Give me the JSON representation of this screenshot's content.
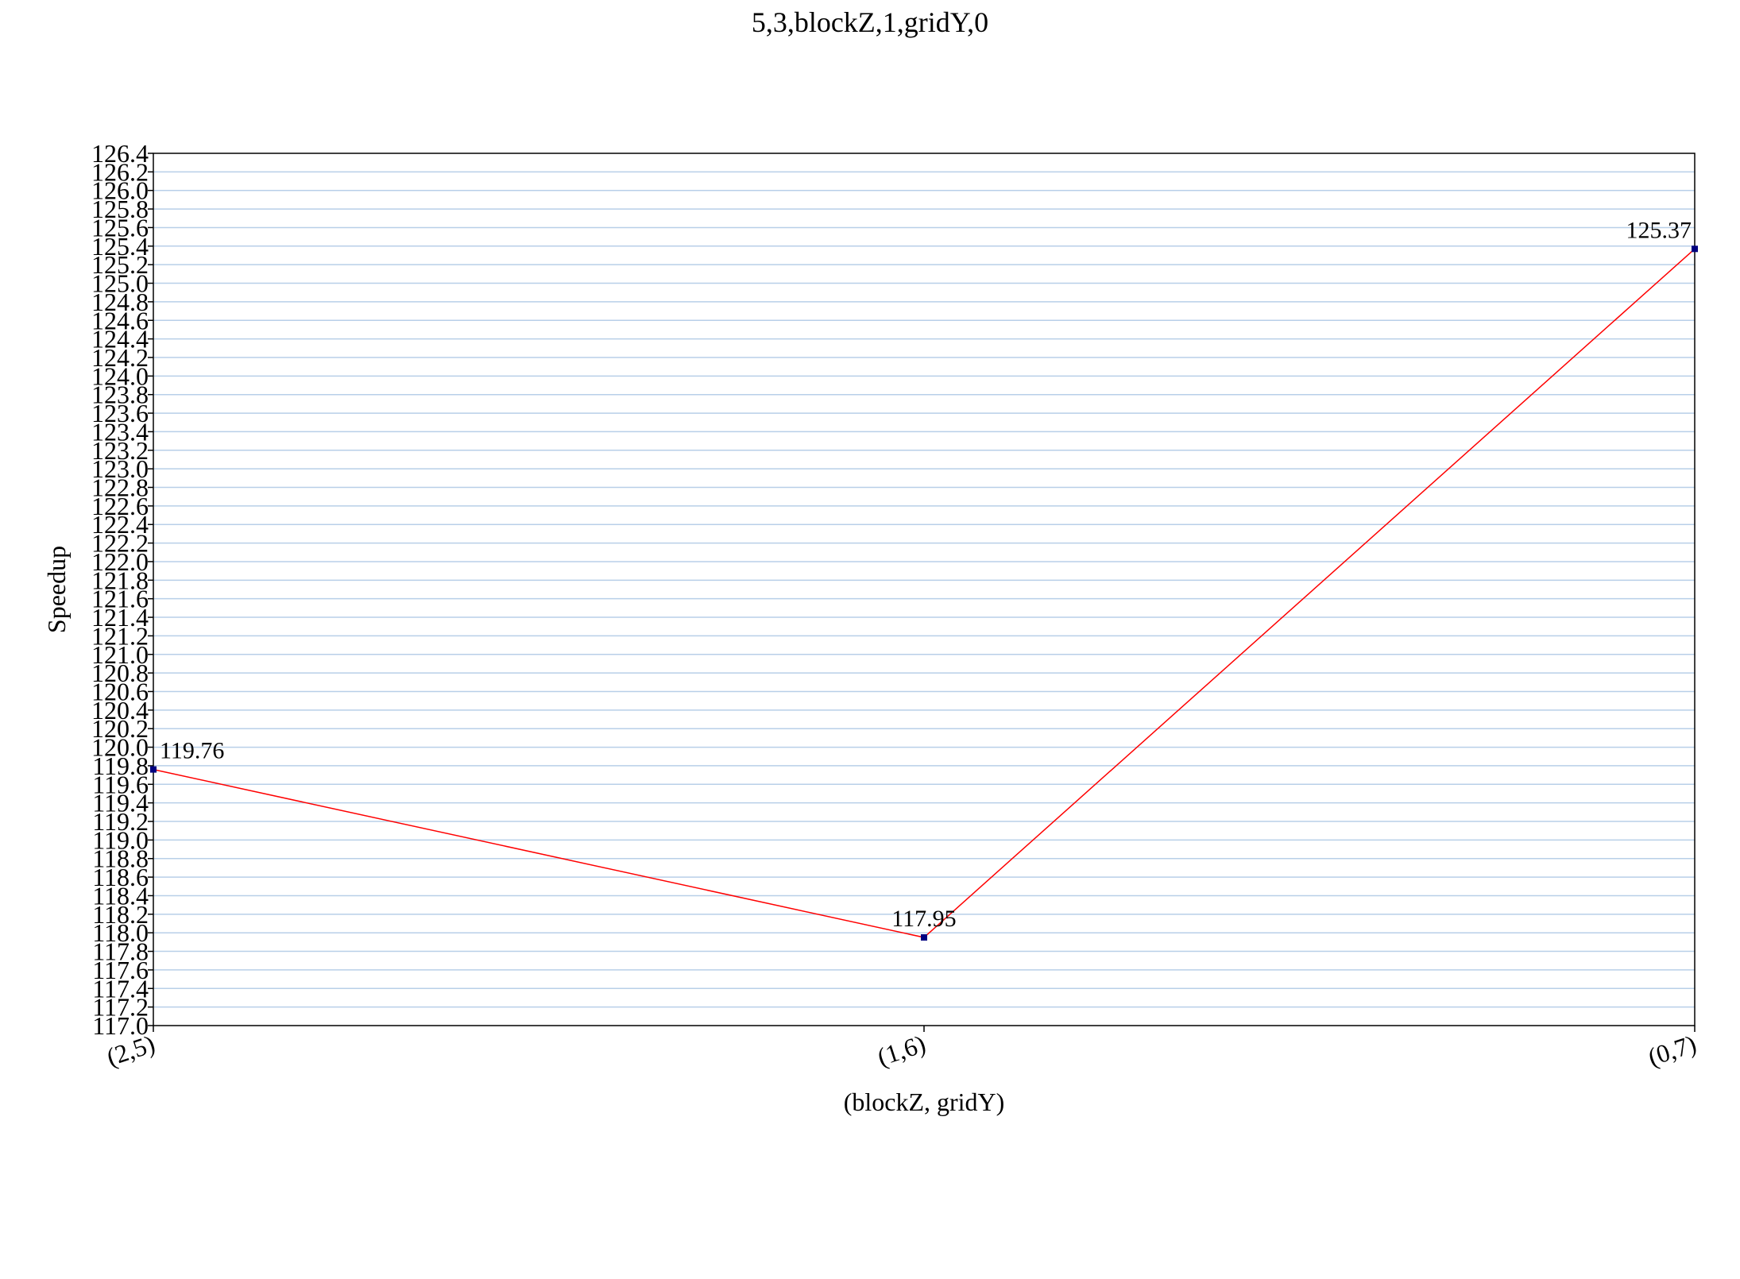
{
  "chart_data": {
    "type": "line",
    "title": "5,3,blockZ,1,gridY,0",
    "xlabel": "(blockZ, gridY)",
    "ylabel": "Speedup",
    "categories": [
      "(2,5)",
      "(1,6)",
      "(0,7)"
    ],
    "series": [
      {
        "values": [
          119.76,
          117.95,
          125.37
        ],
        "color": "#ff0000",
        "marker_color": "#000080"
      }
    ],
    "data_labels": [
      "119.76",
      "117.95",
      "125.37"
    ],
    "ylim": [
      117.0,
      126.4
    ],
    "ytick_step": 0.2,
    "grid": true,
    "grid_color": "#b8cfe8",
    "legend": "none"
  }
}
